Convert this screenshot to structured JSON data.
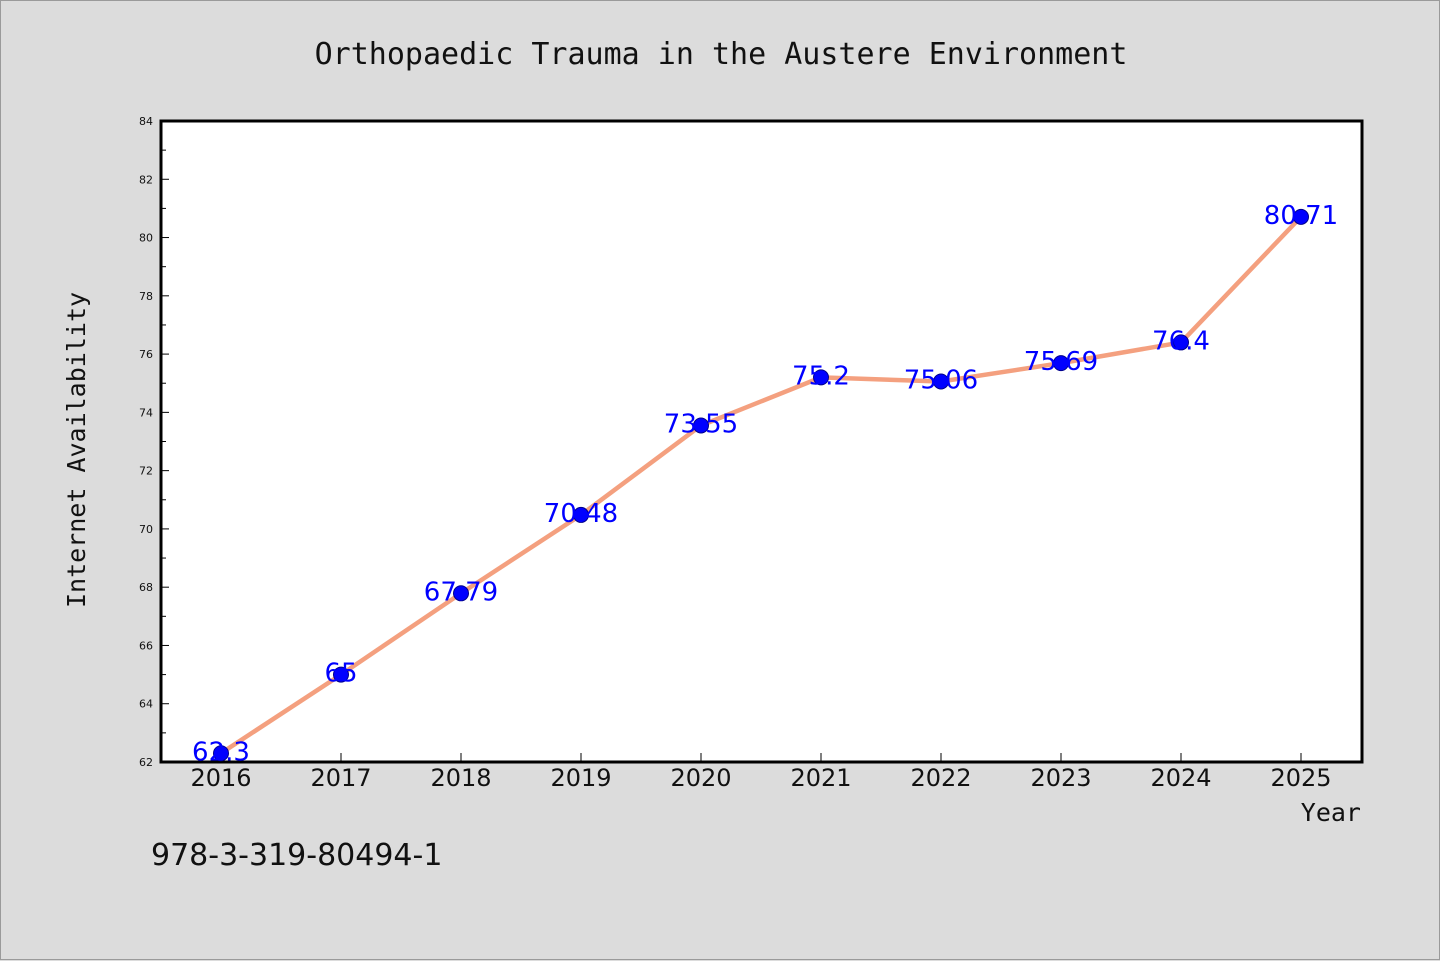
{
  "chart_data": {
    "type": "line",
    "title": "Orthopaedic Trauma in the Austere Environment",
    "xlabel": "Year",
    "ylabel": "Internet Availability",
    "categories": [
      "2016",
      "2017",
      "2018",
      "2019",
      "2020",
      "2021",
      "2022",
      "2023",
      "2024",
      "2025"
    ],
    "series": [
      {
        "values": [
          62.3,
          65,
          67.79,
          70.48,
          73.55,
          75.2,
          75.06,
          75.69,
          76.4,
          80.71
        ],
        "labels": [
          "62.3",
          "65",
          "67.79",
          "70.48",
          "73.55",
          "75.2",
          "75.06",
          "75.69",
          "76.4",
          "80.71"
        ],
        "line_color": "#f4a07f",
        "marker_color": "#0000ff"
      }
    ],
    "ylim": [
      62,
      84
    ],
    "yticks": [
      62,
      64,
      66,
      68,
      70,
      72,
      74,
      76,
      78,
      80,
      82,
      84
    ],
    "grid": false,
    "legend": "none"
  },
  "footer": {
    "isbn": "978-3-319-80494-1"
  },
  "colors": {
    "background": "#dcdcdc",
    "plot_background": "#ffffff",
    "label_color": "#0000ff"
  }
}
